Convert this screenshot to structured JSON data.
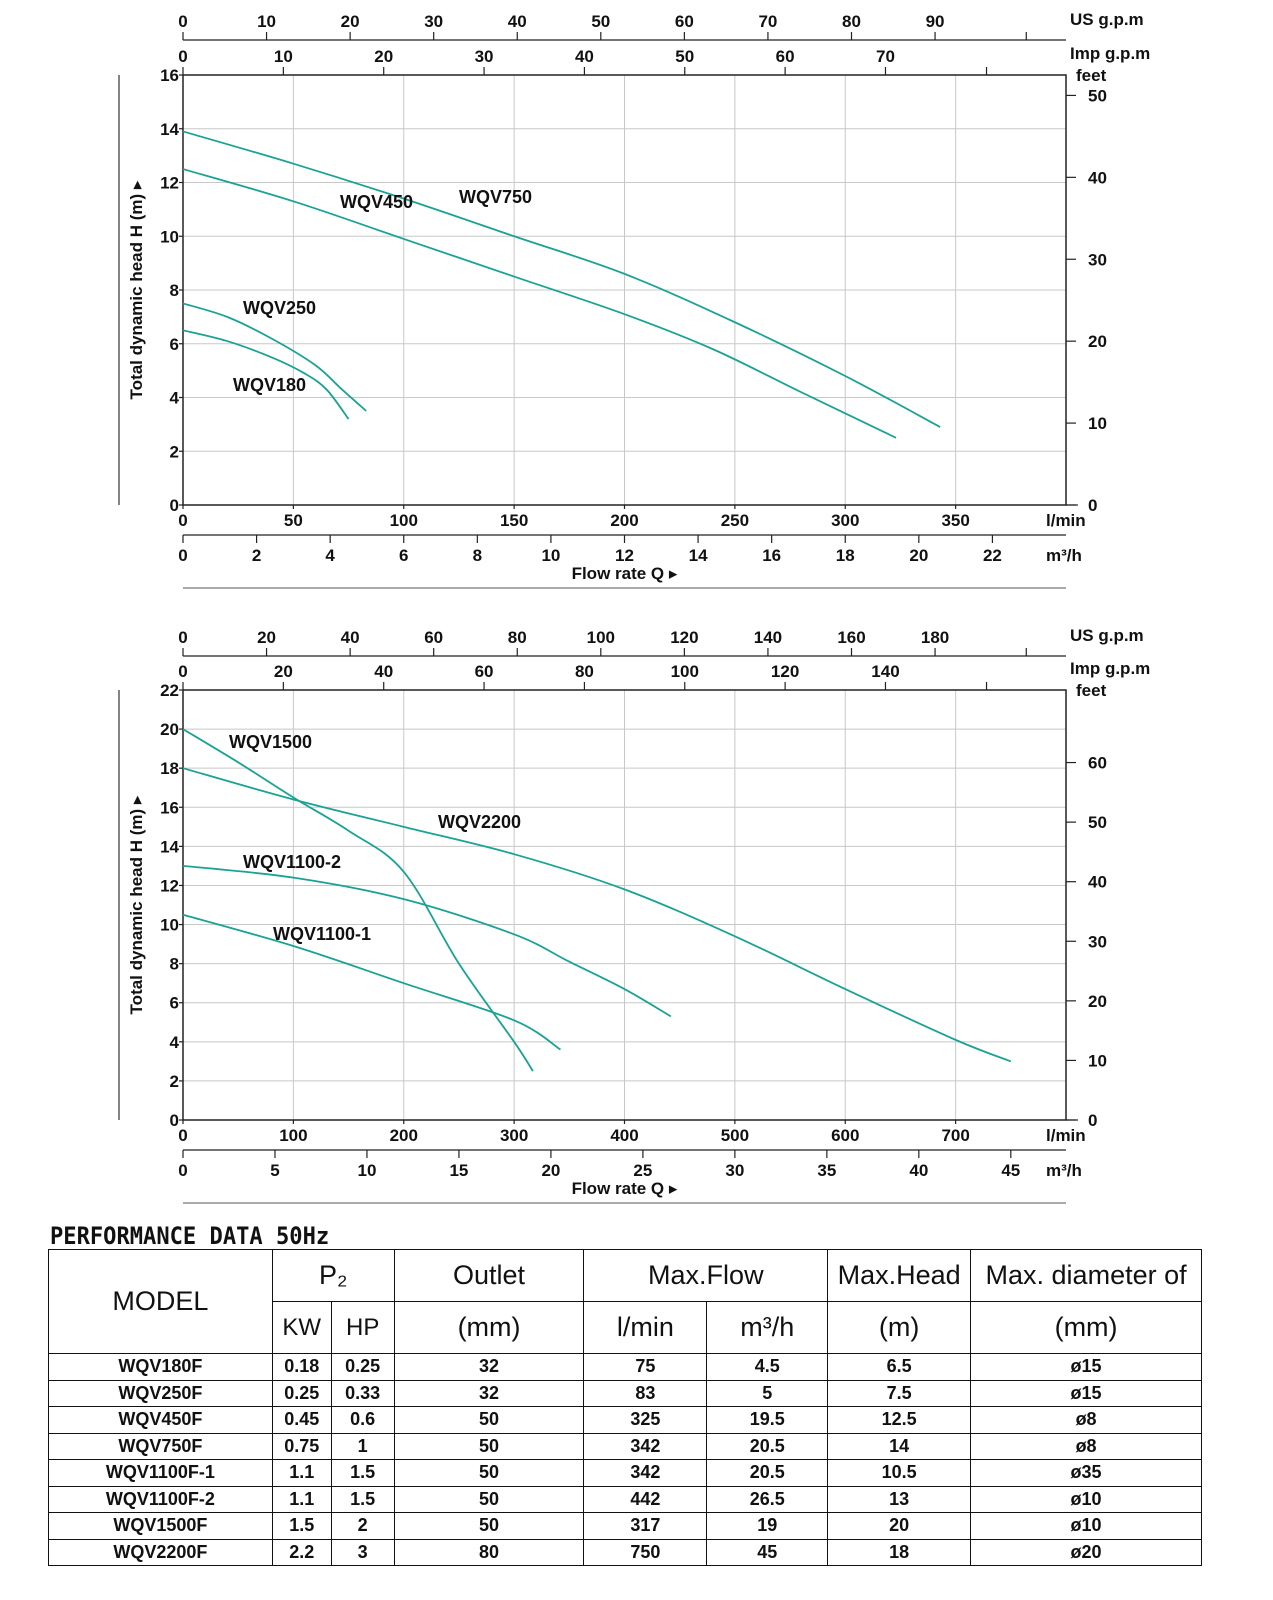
{
  "charts": [
    {
      "us_gpm_ticks": [
        "0",
        "10",
        "20",
        "30",
        "40",
        "50",
        "60",
        "70",
        "80",
        "90"
      ],
      "us_gpm_unit": "US g.p.m",
      "imp_gpm_ticks": [
        "0",
        "10",
        "20",
        "30",
        "40",
        "50",
        "60",
        "70"
      ],
      "imp_gpm_unit": "Imp g.p.m",
      "feet_unit": "feet",
      "feet_ticks": [
        "0",
        "10",
        "20",
        "30",
        "40",
        "50"
      ],
      "lmin_ticks": [
        "0",
        "50",
        "100",
        "150",
        "200",
        "250",
        "300",
        "350"
      ],
      "lmin_unit": "l/min",
      "m3h_ticks": [
        "0",
        "2",
        "4",
        "6",
        "8",
        "10",
        "12",
        "14",
        "16",
        "18",
        "20",
        "22"
      ],
      "m3h_unit": "m³/h",
      "y_ticks": [
        "0",
        "2",
        "4",
        "6",
        "8",
        "10",
        "12",
        "14",
        "16"
      ],
      "ylabel": "Total dynamic head H (m) ▸",
      "xlabel": "Flow rate Q ▸"
    },
    {
      "us_gpm_ticks": [
        "0",
        "20",
        "40",
        "60",
        "80",
        "100",
        "120",
        "140",
        "160",
        "180"
      ],
      "us_gpm_unit": "US g.p.m",
      "imp_gpm_ticks": [
        "0",
        "20",
        "40",
        "60",
        "80",
        "100",
        "120",
        "140"
      ],
      "imp_gpm_unit": "Imp g.p.m",
      "feet_unit": "feet",
      "feet_ticks": [
        "0",
        "10",
        "20",
        "30",
        "40",
        "50",
        "60"
      ],
      "lmin_ticks": [
        "0",
        "100",
        "200",
        "300",
        "400",
        "500",
        "600",
        "700"
      ],
      "lmin_unit": "l/min",
      "m3h_ticks": [
        "0",
        "5",
        "10",
        "15",
        "20",
        "25",
        "30",
        "35",
        "40",
        "45"
      ],
      "m3h_unit": "m³/h",
      "y_ticks": [
        "0",
        "2",
        "4",
        "6",
        "8",
        "10",
        "12",
        "14",
        "16",
        "18",
        "20",
        "22"
      ],
      "ylabel": "Total dynamic head H (m) ▸",
      "xlabel": "Flow rate Q ▸"
    }
  ],
  "chart_data": [
    {
      "type": "line",
      "xlabel": "Flow rate Q",
      "ylabel": "Total dynamic head H (m)",
      "x_unit": "l/min",
      "xlim": [
        0,
        400
      ],
      "ylim": [
        0,
        16
      ],
      "grid": true,
      "color": "#1aa394",
      "series": [
        {
          "name": "WQV180",
          "points": [
            [
              0,
              6.5
            ],
            [
              20,
              6.1
            ],
            [
              40,
              5.5
            ],
            [
              55,
              4.9
            ],
            [
              65,
              4.3
            ],
            [
              75,
              3.2
            ]
          ]
        },
        {
          "name": "WQV250",
          "points": [
            [
              0,
              7.5
            ],
            [
              20,
              7.0
            ],
            [
              40,
              6.2
            ],
            [
              60,
              5.2
            ],
            [
              72,
              4.3
            ],
            [
              83,
              3.5
            ]
          ]
        },
        {
          "name": "WQV450",
          "points": [
            [
              0,
              12.5
            ],
            [
              50,
              11.3
            ],
            [
              100,
              9.9
            ],
            [
              150,
              8.5
            ],
            [
              200,
              7.1
            ],
            [
              240,
              5.8
            ],
            [
              280,
              4.2
            ],
            [
              323,
              2.5
            ]
          ]
        },
        {
          "name": "WQV750",
          "points": [
            [
              0,
              13.9
            ],
            [
              50,
              12.7
            ],
            [
              100,
              11.4
            ],
            [
              150,
              10.0
            ],
            [
              200,
              8.6
            ],
            [
              250,
              6.8
            ],
            [
              300,
              4.8
            ],
            [
              343,
              2.9
            ]
          ]
        }
      ],
      "labels": [
        "WQV450",
        "WQV750",
        "WQV250",
        "WQV180"
      ]
    },
    {
      "type": "line",
      "xlabel": "Flow rate Q",
      "ylabel": "Total dynamic head H (m)",
      "x_unit": "l/min",
      "xlim": [
        0,
        800
      ],
      "ylim": [
        0,
        22
      ],
      "grid": true,
      "color": "#1aa394",
      "series": [
        {
          "name": "WQV1500",
          "points": [
            [
              0,
              20.0
            ],
            [
              50,
              18.3
            ],
            [
              100,
              16.5
            ],
            [
              150,
              14.8
            ],
            [
              200,
              12.7
            ],
            [
              250,
              8.0
            ],
            [
              300,
              4.0
            ],
            [
              317,
              2.5
            ]
          ]
        },
        {
          "name": "WQV2200",
          "points": [
            [
              0,
              18.0
            ],
            [
              100,
              16.4
            ],
            [
              200,
              15.0
            ],
            [
              300,
              13.6
            ],
            [
              400,
              11.8
            ],
            [
              500,
              9.4
            ],
            [
              600,
              6.7
            ],
            [
              700,
              4.1
            ],
            [
              750,
              3.0
            ]
          ]
        },
        {
          "name": "WQV1100-2",
          "points": [
            [
              0,
              13.0
            ],
            [
              100,
              12.4
            ],
            [
              200,
              11.3
            ],
            [
              300,
              9.5
            ],
            [
              350,
              8.1
            ],
            [
              400,
              6.7
            ],
            [
              442,
              5.3
            ]
          ]
        },
        {
          "name": "WQV1100-1",
          "points": [
            [
              0,
              10.5
            ],
            [
              100,
              8.9
            ],
            [
              200,
              7.0
            ],
            [
              300,
              5.1
            ],
            [
              342,
              3.6
            ]
          ]
        }
      ],
      "labels": [
        "WQV1500",
        "WQV2200",
        "WQV1100-2",
        "WQV1100-1"
      ]
    }
  ],
  "performance": {
    "title": "PERFORMANCE DATA 50Hz",
    "headers": {
      "model": "MODEL",
      "p2": "P₂",
      "kw": "KW",
      "hp": "HP",
      "outlet": "Outlet",
      "outlet_unit": "(mm)",
      "max_flow": "Max.Flow",
      "lmin": "l/min",
      "m3h": "m³/h",
      "max_head": "Max.Head",
      "max_head_unit": "(m)",
      "max_diameter": "Max. diameter of",
      "max_diameter_unit": "(mm)"
    },
    "rows": [
      [
        "WQV180F",
        "0.18",
        "0.25",
        "32",
        "75",
        "4.5",
        "6.5",
        "ø15"
      ],
      [
        "WQV250F",
        "0.25",
        "0.33",
        "32",
        "83",
        "5",
        "7.5",
        "ø15"
      ],
      [
        "WQV450F",
        "0.45",
        "0.6",
        "50",
        "325",
        "19.5",
        "12.5",
        "ø8"
      ],
      [
        "WQV750F",
        "0.75",
        "1",
        "50",
        "342",
        "20.5",
        "14",
        "ø8"
      ],
      [
        "WQV1100F-1",
        "1.1",
        "1.5",
        "50",
        "342",
        "20.5",
        "10.5",
        "ø35"
      ],
      [
        "WQV1100F-2",
        "1.1",
        "1.5",
        "50",
        "442",
        "26.5",
        "13",
        "ø10"
      ],
      [
        "WQV1500F",
        "1.5",
        "2",
        "50",
        "317",
        "19",
        "20",
        "ø10"
      ],
      [
        "WQV2200F",
        "2.2",
        "3",
        "80",
        "750",
        "45",
        "18",
        "ø20"
      ]
    ]
  }
}
